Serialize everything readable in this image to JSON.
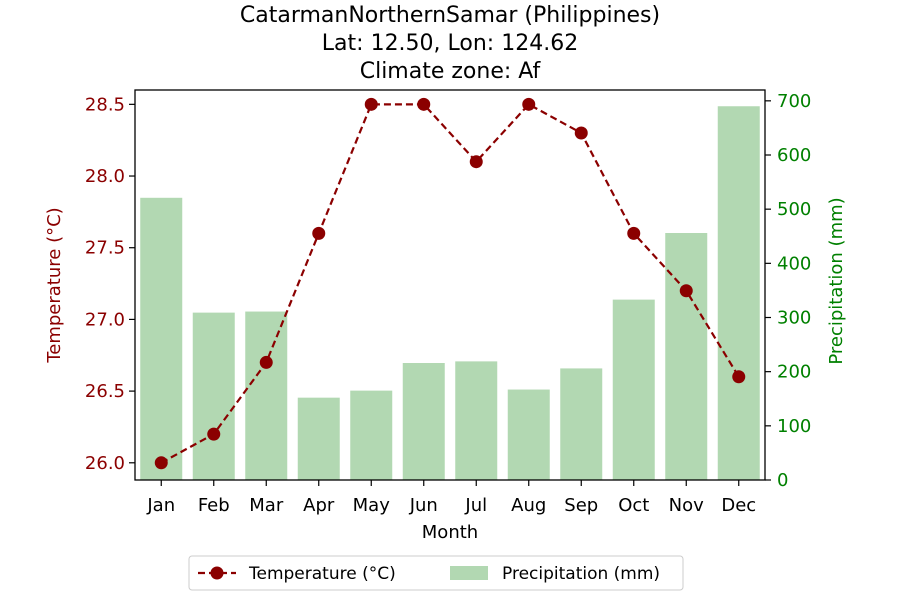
{
  "chart_data": {
    "type": "bar+line",
    "title_lines": [
      "CatarmanNorthernSamar (Philippines)",
      "Lat: 12.50, Lon: 124.62",
      "Climate zone: Af"
    ],
    "categories": [
      "Jan",
      "Feb",
      "Mar",
      "Apr",
      "May",
      "Jun",
      "Jul",
      "Aug",
      "Sep",
      "Oct",
      "Nov",
      "Dec"
    ],
    "xlabel": "Month",
    "y_left": {
      "label": "Temperature (°C)",
      "ylim": [
        25.88,
        28.6
      ],
      "ticks": [
        26.0,
        26.5,
        27.0,
        27.5,
        28.0,
        28.5
      ],
      "tick_labels": [
        "26.0",
        "26.5",
        "27.0",
        "27.5",
        "28.0",
        "28.5"
      ],
      "color": "#8b0000"
    },
    "y_right": {
      "label": "Precipitation (mm)",
      "ylim": [
        0,
        720
      ],
      "ticks": [
        0,
        100,
        200,
        300,
        400,
        500,
        600,
        700
      ],
      "tick_labels": [
        "0",
        "100",
        "200",
        "300",
        "400",
        "500",
        "600",
        "700"
      ],
      "color": "#008000"
    },
    "series": [
      {
        "name": "Temperature (°C)",
        "type": "line",
        "axis": "left",
        "color": "#8b0000",
        "style": "dashed",
        "marker": "circle",
        "values": [
          26.0,
          26.2,
          26.7,
          27.6,
          28.5,
          28.5,
          28.1,
          28.5,
          28.3,
          27.6,
          27.2,
          26.6
        ]
      },
      {
        "name": "Precipitation (mm)",
        "type": "bar",
        "axis": "right",
        "color": "#b2d8b2",
        "values": [
          521,
          309,
          311,
          152,
          165,
          216,
          219,
          167,
          206,
          333,
          456,
          690
        ]
      }
    ],
    "legend": {
      "placement": "bottom-center",
      "entries": [
        "Temperature (°C)",
        "Precipitation (mm)"
      ]
    },
    "grid": false
  }
}
